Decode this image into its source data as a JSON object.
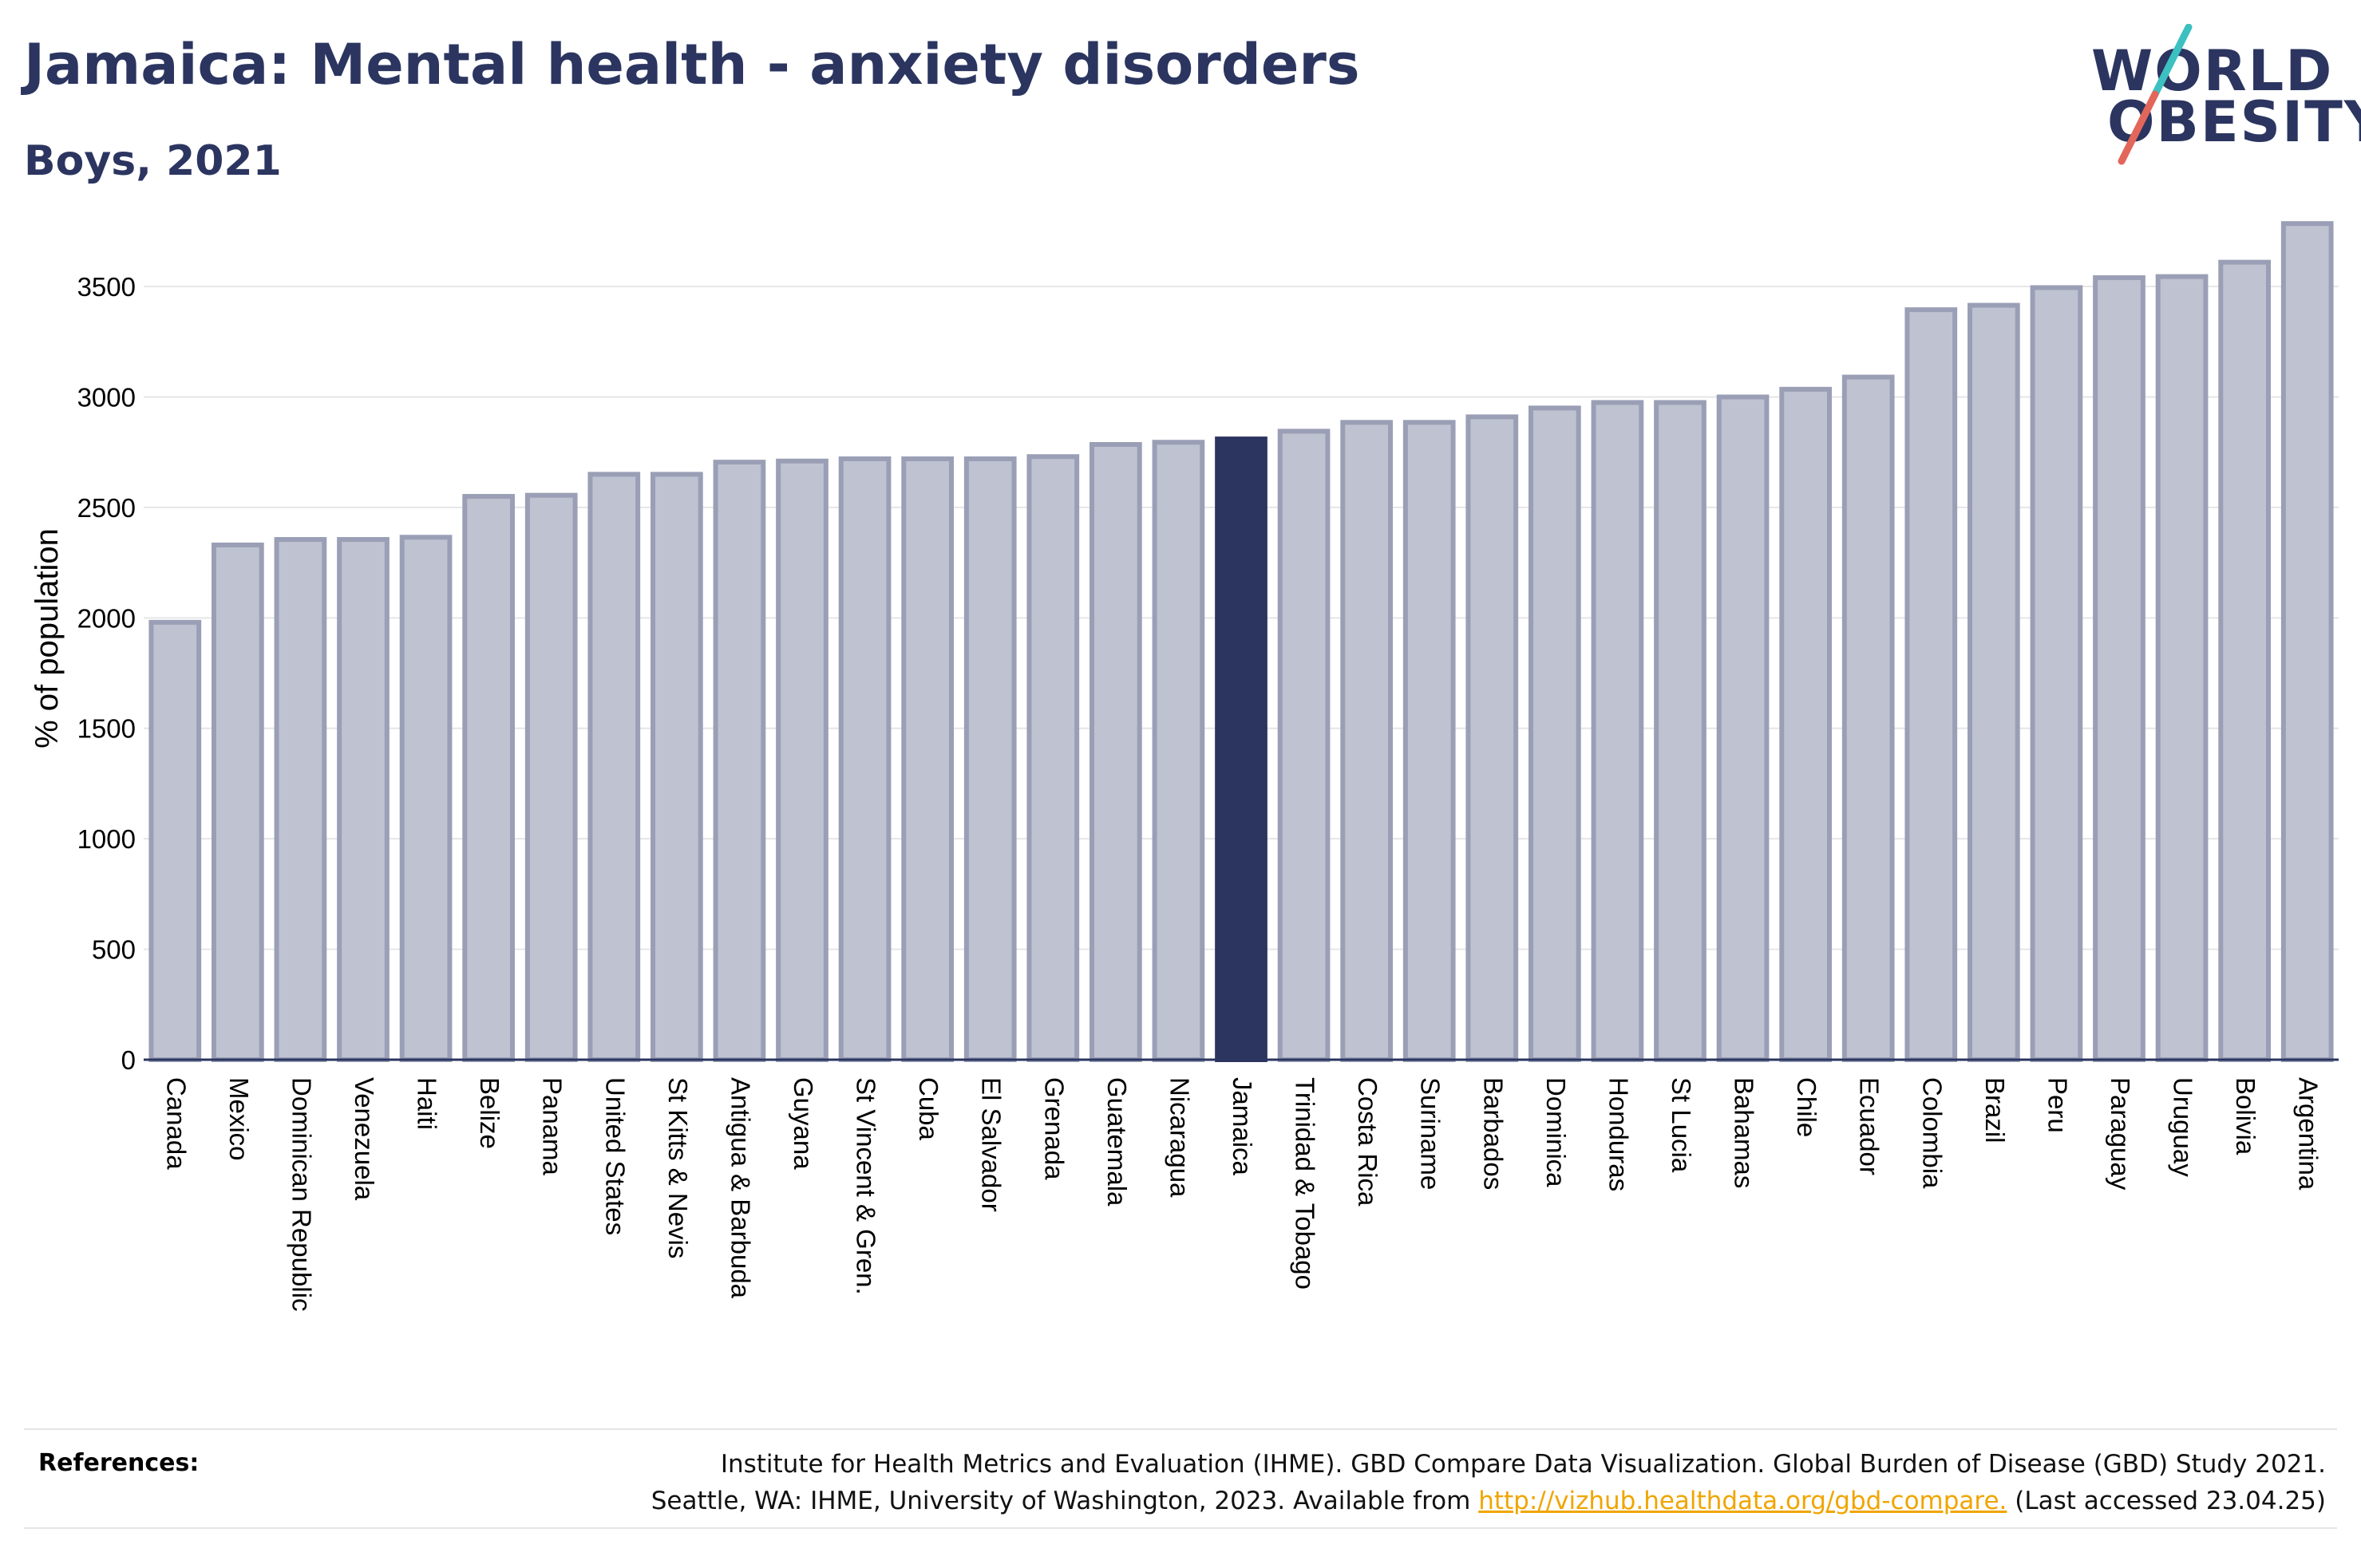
{
  "header": {
    "title": "Jamaica: Mental health - anxiety disorders",
    "subtitle": "Boys, 2021"
  },
  "logo": {
    "line1": "WORLD",
    "line2": "OBESITY",
    "slash_colors": [
      "#3cc1c0",
      "#e2665a"
    ]
  },
  "colors": {
    "bar_fill": "#bfc2d0",
    "bar_stroke": "#9a9fb6",
    "highlight": "#2b3560",
    "grid": "#e6e6e6",
    "axis": "#2b3560"
  },
  "chart_data": {
    "type": "bar",
    "ylabel": "% of population",
    "ylim": [
      0,
      3800
    ],
    "yticks": [
      0,
      500,
      1000,
      1500,
      2000,
      2500,
      3000,
      3500
    ],
    "highlight": "Jamaica",
    "grid": true,
    "categories": [
      "Canada",
      "Mexico",
      "Dominican Republic",
      "Venezuela",
      "Haiti",
      "Belize",
      "Panama",
      "United States",
      "St Kitts & Nevis",
      "Antigua & Barbuda",
      "Guyana",
      "St Vincent & Gren.",
      "Cuba",
      "El Salvador",
      "Grenada",
      "Guatemala",
      "Nicaragua",
      "Jamaica",
      "Trinidad & Tobago",
      "Costa Rica",
      "Suriname",
      "Barbados",
      "Dominica",
      "Honduras",
      "St Lucia",
      "Bahamas",
      "Chile",
      "Ecuador",
      "Colombia",
      "Brazil",
      "Peru",
      "Paraguay",
      "Uruguay",
      "Bolivia",
      "Argentina"
    ],
    "values": [
      1980,
      2330,
      2355,
      2355,
      2365,
      2550,
      2555,
      2650,
      2650,
      2705,
      2710,
      2720,
      2720,
      2720,
      2730,
      2785,
      2795,
      2810,
      2845,
      2885,
      2885,
      2910,
      2950,
      2975,
      2975,
      3000,
      3035,
      3090,
      3395,
      3415,
      3495,
      3540,
      3545,
      3610,
      3785
    ]
  },
  "references": {
    "label": "References:",
    "line1": "Institute for Health Metrics and Evaluation (IHME). GBD Compare Data Visualization. Global Burden of Disease (GBD) Study 2021.",
    "line2_prefix": "Seattle, WA: IHME, University of Washington, 2023. Available from",
    "link": "http://vizhub.healthdata.org/gbd-compare.",
    "line2_suffix": "(Last accessed 23.04.25)"
  }
}
